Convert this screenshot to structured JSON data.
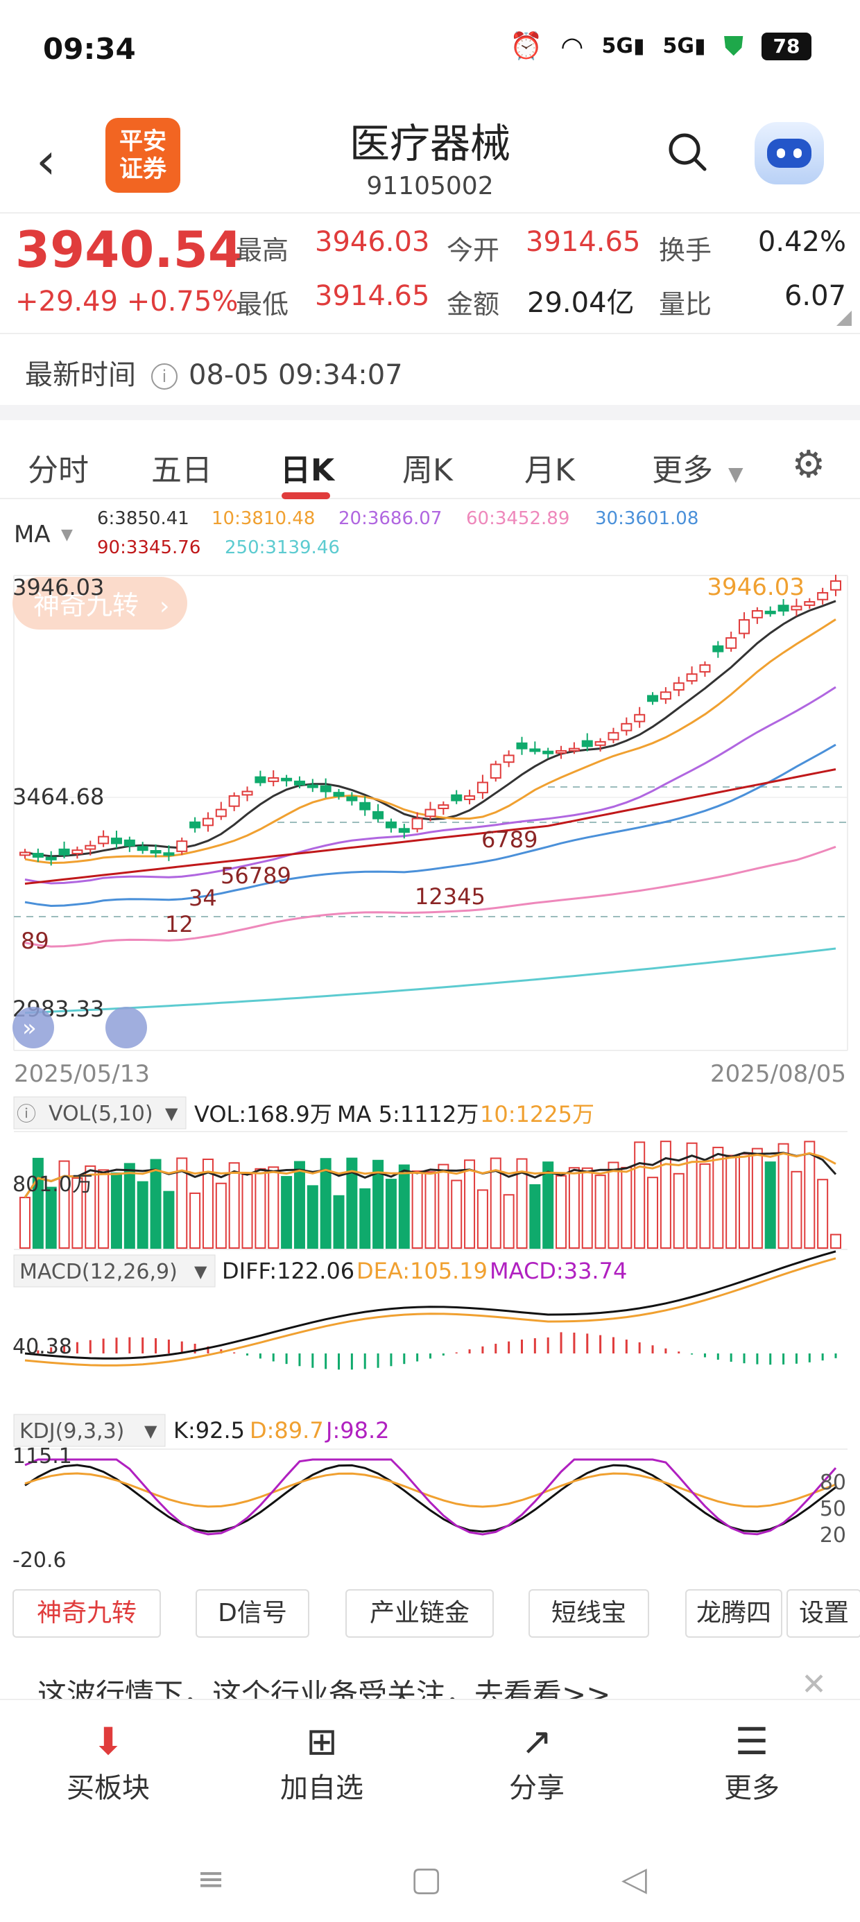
{
  "status_bar": {
    "time": "09:34",
    "battery": "78"
  },
  "header": {
    "back_icon": "chevron-left-icon",
    "logo_line1": "平安",
    "logo_line2": "证券",
    "title": "医疗器械",
    "code": "91105002"
  },
  "quote": {
    "price": "3940.54",
    "change": "+29.49 +0.75%",
    "high_label": "最高",
    "high": "3946.03",
    "open_label": "今开",
    "open": "3914.65",
    "turnover_label": "换手",
    "turnover": "0.42%",
    "low_label": "最低",
    "low": "3914.65",
    "amount_label": "金额",
    "amount": "29.04亿",
    "volratio_label": "量比",
    "volratio": "6.07",
    "time_label": "最新时间",
    "time": "08-05 09:34:07"
  },
  "tabs": [
    "分时",
    "五日",
    "日K",
    "周K",
    "月K",
    "更多"
  ],
  "active_tab": "日K",
  "ma_legend": {
    "label": "MA",
    "ma6": "6:3850.41",
    "ma10": "10:3810.48",
    "ma20": "20:3686.07",
    "ma60": "60:3452.89",
    "ma30": "30:3601.08",
    "ma90": "90:3345.76",
    "ma250": "250:3139.46"
  },
  "colors": {
    "up": "#e03c3c",
    "down": "#0faa6c",
    "ma6": "#333333",
    "ma10": "#f0a030",
    "ma20": "#b066e0",
    "ma30": "#4a90d9",
    "ma60": "#ee88bb",
    "ma90": "#c0181a",
    "ma250": "#5ccbd0"
  },
  "chart_data": [
    {
      "type": "candlestick",
      "title": "",
      "y_ticks": [
        "3946.03",
        "3464.68",
        "2983.33"
      ],
      "price_labels": {
        "max": "3946.03",
        "overlay_badge": "神奇九转"
      },
      "x_range": [
        "2025/05/13",
        "2025/08/05"
      ],
      "nine_turn_labels": [
        "89",
        "12",
        "34",
        "56789",
        "12345",
        "6789"
      ],
      "close": [
        3345,
        3335,
        3330,
        3340,
        3350,
        3360,
        3380,
        3365,
        3360,
        3350,
        3345,
        3340,
        3370,
        3400,
        3420,
        3440,
        3470,
        3480,
        3500,
        3510,
        3505,
        3495,
        3490,
        3480,
        3470,
        3460,
        3440,
        3420,
        3400,
        3390,
        3420,
        3440,
        3450,
        3460,
        3470,
        3500,
        3540,
        3560,
        3575,
        3570,
        3565,
        3570,
        3575,
        3580,
        3590,
        3610,
        3630,
        3650,
        3680,
        3700,
        3720,
        3740,
        3760,
        3790,
        3820,
        3860,
        3880,
        3875,
        3880,
        3890,
        3900,
        3920,
        3946
      ]
    },
    {
      "type": "bar",
      "title": "VOL(5,10)",
      "legend": {
        "vol": "VOL:168.9万",
        "ma5": "MA 5:1112万",
        "ma10": "10:1225万"
      },
      "y_tick": "801.0万"
    },
    {
      "type": "bar",
      "title": "MACD(12,26,9)",
      "legend": {
        "diff": "DIFF:122.06",
        "dea": "DEA:105.19",
        "macd": "MACD:33.74"
      },
      "y_tick": "40.38"
    },
    {
      "type": "line",
      "title": "KDJ(9,3,3)",
      "legend": {
        "k": "K:92.5",
        "d": "D:89.7",
        "j": "J:98.2"
      },
      "y_ticks": [
        "115.1",
        "-20.6"
      ],
      "levels": [
        "80",
        "50",
        "20"
      ]
    }
  ],
  "indicator_buttons": [
    "神奇九转",
    "D信号",
    "产业链金",
    "短线宝",
    "龙腾四",
    "设置"
  ],
  "banner": {
    "text": "这波行情下，这个行业备受关注，去看看>>"
  },
  "toolbar": [
    {
      "label": "买板块",
      "icon": "download-box-icon"
    },
    {
      "label": "加自选",
      "icon": "plus-box-icon"
    },
    {
      "label": "分享",
      "icon": "share-icon"
    },
    {
      "label": "更多",
      "icon": "menu-list-icon"
    }
  ]
}
